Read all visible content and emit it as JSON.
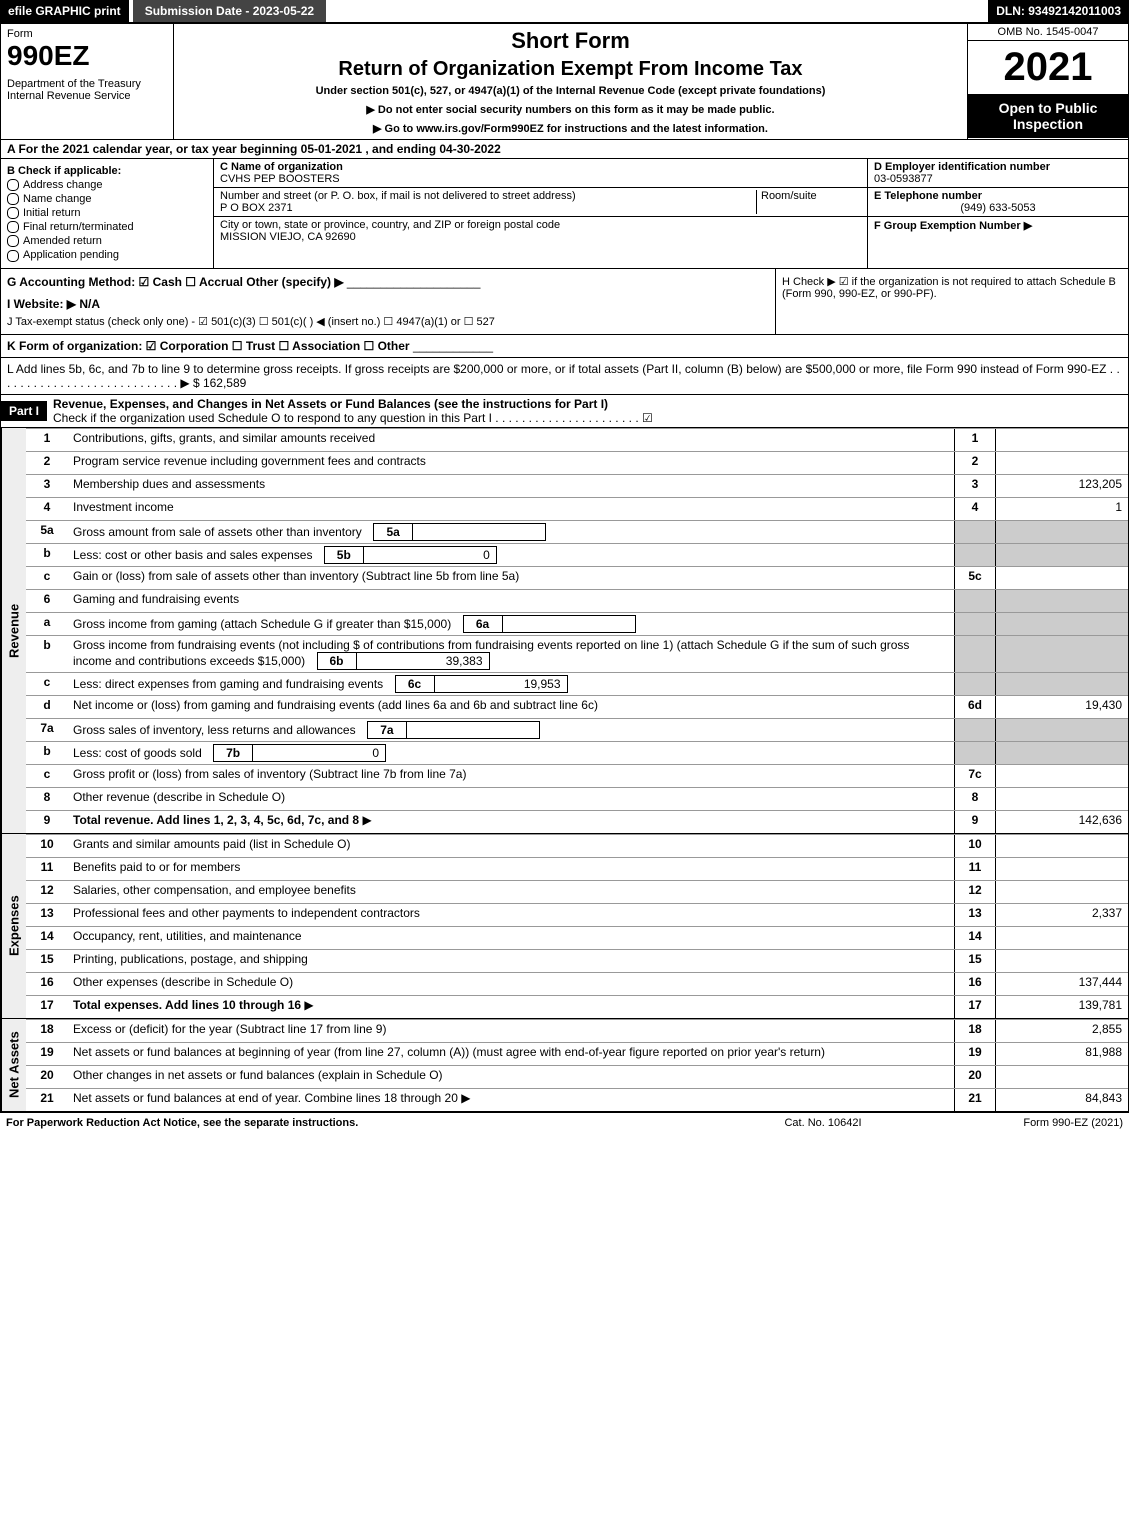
{
  "topbar": {
    "efile": "efile GRAPHIC print",
    "submission": "Submission Date - 2023-05-22",
    "dln": "DLN: 93492142011003"
  },
  "header": {
    "form_label": "Form",
    "form_num": "990EZ",
    "dept": "Department of the Treasury\nInternal Revenue Service",
    "short_form": "Short Form",
    "title": "Return of Organization Exempt From Income Tax",
    "subtitle": "Under section 501(c), 527, or 4947(a)(1) of the Internal Revenue Code (except private foundations)",
    "notice1": "▶ Do not enter social security numbers on this form as it may be made public.",
    "notice2": "▶ Go to www.irs.gov/Form990EZ for instructions and the latest information.",
    "omb": "OMB No. 1545-0047",
    "year": "2021",
    "open": "Open to Public Inspection"
  },
  "row_a": "A  For the 2021 calendar year, or tax year beginning 05-01-2021 , and ending 04-30-2022",
  "section_b": {
    "label": "B  Check if applicable:",
    "items": [
      "Address change",
      "Name change",
      "Initial return",
      "Final return/terminated",
      "Amended return",
      "Application pending"
    ]
  },
  "section_c": {
    "name_label": "C Name of organization",
    "name": "CVHS PEP BOOSTERS",
    "addr_label": "Number and street (or P. O. box, if mail is not delivered to street address)",
    "room_label": "Room/suite",
    "addr": "P O BOX 2371",
    "city_label": "City or town, state or province, country, and ZIP or foreign postal code",
    "city": "MISSION VIEJO, CA  92690"
  },
  "section_de": {
    "d_label": "D Employer identification number",
    "d_val": "03-0593877",
    "e_label": "E Telephone number",
    "e_val": "(949) 633-5053",
    "f_label": "F Group Exemption Number ▶"
  },
  "row_g": "G Accounting Method:  ☑ Cash  ☐ Accrual  Other (specify) ▶",
  "row_h": "H  Check ▶ ☑ if the organization is not required to attach Schedule B (Form 990, 990-EZ, or 990-PF).",
  "row_i": "I Website: ▶ N/A",
  "row_j": "J Tax-exempt status (check only one) - ☑ 501(c)(3) ☐ 501(c)(  ) ◀ (insert no.) ☐ 4947(a)(1) or ☐ 527",
  "row_k": "K Form of organization:  ☑ Corporation  ☐ Trust  ☐ Association  ☐ Other",
  "row_l": {
    "text": "L Add lines 5b, 6c, and 7b to line 9 to determine gross receipts. If gross receipts are $200,000 or more, or if total assets (Part II, column (B) below) are $500,000 or more, file Form 990 instead of Form 990-EZ",
    "val": "▶ $ 162,589"
  },
  "part1": {
    "label": "Part I",
    "title": "Revenue, Expenses, and Changes in Net Assets or Fund Balances (see the instructions for Part I)",
    "check": "Check if the organization used Schedule O to respond to any question in this Part I"
  },
  "sections": {
    "revenue": "Revenue",
    "expenses": "Expenses",
    "netassets": "Net Assets"
  },
  "lines": [
    {
      "n": "1",
      "desc": "Contributions, gifts, grants, and similar amounts received",
      "rn": "1",
      "val": ""
    },
    {
      "n": "2",
      "desc": "Program service revenue including government fees and contracts",
      "rn": "2",
      "val": ""
    },
    {
      "n": "3",
      "desc": "Membership dues and assessments",
      "rn": "3",
      "val": "123,205"
    },
    {
      "n": "4",
      "desc": "Investment income",
      "rn": "4",
      "val": "1"
    },
    {
      "n": "5a",
      "desc": "Gross amount from sale of assets other than inventory",
      "sub": "5a",
      "subval": "",
      "shaded": true
    },
    {
      "n": "b",
      "desc": "Less: cost or other basis and sales expenses",
      "sub": "5b",
      "subval": "0",
      "shaded": true
    },
    {
      "n": "c",
      "desc": "Gain or (loss) from sale of assets other than inventory (Subtract line 5b from line 5a)",
      "rn": "5c",
      "val": ""
    },
    {
      "n": "6",
      "desc": "Gaming and fundraising events",
      "shaded": true
    },
    {
      "n": "a",
      "desc": "Gross income from gaming (attach Schedule G if greater than $15,000)",
      "sub": "6a",
      "subval": "",
      "shaded": true
    },
    {
      "n": "b",
      "desc": "Gross income from fundraising events (not including $                    of contributions from fundraising events reported on line 1) (attach Schedule G if the sum of such gross income and contributions exceeds $15,000)",
      "sub": "6b",
      "subval": "39,383",
      "shaded": true
    },
    {
      "n": "c",
      "desc": "Less: direct expenses from gaming and fundraising events",
      "sub": "6c",
      "subval": "19,953",
      "shaded": true
    },
    {
      "n": "d",
      "desc": "Net income or (loss) from gaming and fundraising events (add lines 6a and 6b and subtract line 6c)",
      "rn": "6d",
      "val": "19,430"
    },
    {
      "n": "7a",
      "desc": "Gross sales of inventory, less returns and allowances",
      "sub": "7a",
      "subval": "",
      "shaded": true
    },
    {
      "n": "b",
      "desc": "Less: cost of goods sold",
      "sub": "7b",
      "subval": "0",
      "shaded": true
    },
    {
      "n": "c",
      "desc": "Gross profit or (loss) from sales of inventory (Subtract line 7b from line 7a)",
      "rn": "7c",
      "val": ""
    },
    {
      "n": "8",
      "desc": "Other revenue (describe in Schedule O)",
      "rn": "8",
      "val": ""
    },
    {
      "n": "9",
      "desc": "Total revenue. Add lines 1, 2, 3, 4, 5c, 6d, 7c, and 8",
      "rn": "9",
      "val": "142,636",
      "bold": true,
      "arrow": true
    }
  ],
  "exp_lines": [
    {
      "n": "10",
      "desc": "Grants and similar amounts paid (list in Schedule O)",
      "rn": "10",
      "val": ""
    },
    {
      "n": "11",
      "desc": "Benefits paid to or for members",
      "rn": "11",
      "val": ""
    },
    {
      "n": "12",
      "desc": "Salaries, other compensation, and employee benefits",
      "rn": "12",
      "val": ""
    },
    {
      "n": "13",
      "desc": "Professional fees and other payments to independent contractors",
      "rn": "13",
      "val": "2,337"
    },
    {
      "n": "14",
      "desc": "Occupancy, rent, utilities, and maintenance",
      "rn": "14",
      "val": ""
    },
    {
      "n": "15",
      "desc": "Printing, publications, postage, and shipping",
      "rn": "15",
      "val": ""
    },
    {
      "n": "16",
      "desc": "Other expenses (describe in Schedule O)",
      "rn": "16",
      "val": "137,444"
    },
    {
      "n": "17",
      "desc": "Total expenses. Add lines 10 through 16",
      "rn": "17",
      "val": "139,781",
      "bold": true,
      "arrow": true
    }
  ],
  "na_lines": [
    {
      "n": "18",
      "desc": "Excess or (deficit) for the year (Subtract line 17 from line 9)",
      "rn": "18",
      "val": "2,855"
    },
    {
      "n": "19",
      "desc": "Net assets or fund balances at beginning of year (from line 27, column (A)) (must agree with end-of-year figure reported on prior year's return)",
      "rn": "19",
      "val": "81,988"
    },
    {
      "n": "20",
      "desc": "Other changes in net assets or fund balances (explain in Schedule O)",
      "rn": "20",
      "val": ""
    },
    {
      "n": "21",
      "desc": "Net assets or fund balances at end of year. Combine lines 18 through 20",
      "rn": "21",
      "val": "84,843",
      "arrow": true
    }
  ],
  "footer": {
    "left": "For Paperwork Reduction Act Notice, see the separate instructions.",
    "center": "Cat. No. 10642I",
    "right": "Form 990-EZ (2021)"
  }
}
